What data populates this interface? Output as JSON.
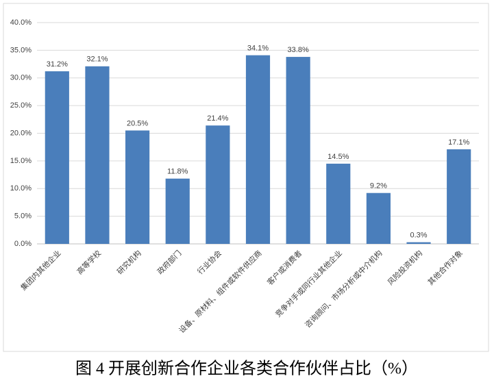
{
  "chart_data": {
    "type": "bar",
    "title": "图 4 开展创新合作企业各类合作伙伴占比（%）",
    "categories": [
      "集团内其他企业",
      "高等学校",
      "研究机构",
      "政府部门",
      "行业协会",
      "设备、原材料、组件或软件供应商",
      "客户或消费者",
      "竞争对手或同行业其他企业",
      "咨询顾问、市场分析或中介机构",
      "风险投资机构",
      "其他合作对象"
    ],
    "values": [
      31.2,
      32.1,
      20.5,
      11.8,
      21.4,
      34.1,
      33.8,
      14.5,
      9.2,
      0.3,
      17.1
    ],
    "value_labels": [
      "31.2%",
      "32.1%",
      "20.5%",
      "11.8%",
      "21.4%",
      "34.1%",
      "33.8%",
      "14.5%",
      "9.2%",
      "0.3%",
      "17.1%"
    ],
    "color": "#4a7ebb",
    "ylim": [
      0,
      40
    ],
    "yticks": [
      {
        "value": 0,
        "label": "0.0%"
      },
      {
        "value": 5,
        "label": "5.0%"
      },
      {
        "value": 10,
        "label": "10.0%"
      },
      {
        "value": 15,
        "label": "15.0%"
      },
      {
        "value": 20,
        "label": "20.0%"
      },
      {
        "value": 25,
        "label": "25.0%"
      },
      {
        "value": 30,
        "label": "30.0%"
      },
      {
        "value": 35,
        "label": "35.0%"
      },
      {
        "value": 40,
        "label": "40.0%"
      }
    ],
    "grid": true
  }
}
